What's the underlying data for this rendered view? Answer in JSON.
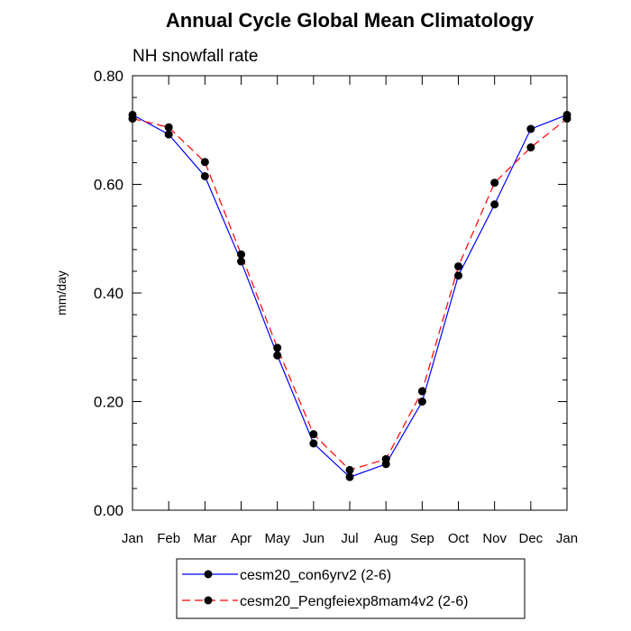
{
  "chart_data": {
    "type": "line",
    "title": "Annual Cycle Global Mean Climatology",
    "subtitle": "NH snowfall rate",
    "xlabel": "",
    "ylabel": "mm/day",
    "ylim": [
      0,
      0.8
    ],
    "y_ticks": [
      "0.00",
      "0.20",
      "0.40",
      "0.60",
      "0.80"
    ],
    "categories": [
      "Jan",
      "Feb",
      "Mar",
      "Apr",
      "May",
      "Jun",
      "Jul",
      "Aug",
      "Sep",
      "Oct",
      "Nov",
      "Dec",
      "Jan"
    ],
    "grid": false,
    "legend_position": "bottom",
    "series": [
      {
        "name": "cesm20_con6yrv2 (2-6)",
        "color": "#0000ff",
        "dash": "solid",
        "values": [
          0.728,
          0.692,
          0.615,
          0.458,
          0.285,
          0.123,
          0.061,
          0.085,
          0.2,
          0.432,
          0.563,
          0.702,
          0.728
        ]
      },
      {
        "name": "cesm20_Pengfeiexp8mam4v2 (2-6)",
        "color": "#ff0000",
        "dash": "dashed",
        "values": [
          0.721,
          0.705,
          0.641,
          0.471,
          0.299,
          0.14,
          0.074,
          0.094,
          0.219,
          0.449,
          0.603,
          0.668,
          0.721
        ]
      }
    ]
  }
}
